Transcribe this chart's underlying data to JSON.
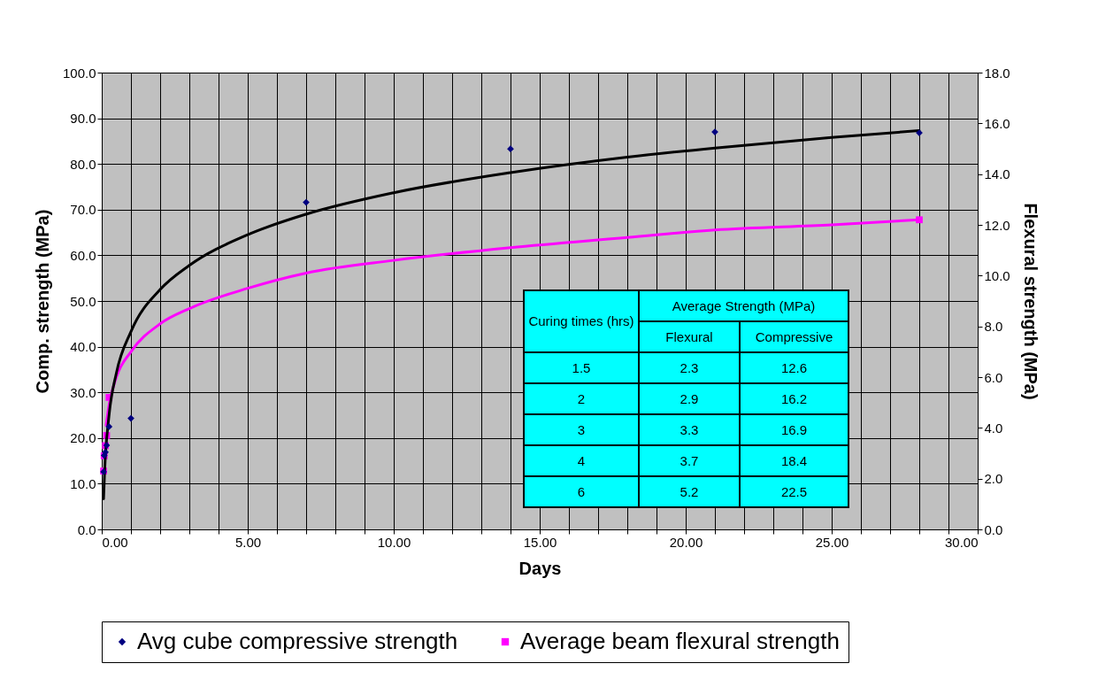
{
  "chart_data": {
    "type": "scatter",
    "xlabel": "Days",
    "ylabel": "Comp. strength (MPa)",
    "y2label": "Flexural strength (MPa)",
    "xlim": [
      0,
      30
    ],
    "xticks": [
      {
        "value": 0,
        "label": "0.00"
      },
      {
        "value": 1,
        "label": null
      },
      {
        "value": 2,
        "label": null
      },
      {
        "value": 3,
        "label": null
      },
      {
        "value": 4,
        "label": null
      },
      {
        "value": 5,
        "label": "5.00"
      },
      {
        "value": 6,
        "label": null
      },
      {
        "value": 7,
        "label": null
      },
      {
        "value": 8,
        "label": null
      },
      {
        "value": 9,
        "label": null
      },
      {
        "value": 10,
        "label": "10.00"
      },
      {
        "value": 11,
        "label": null
      },
      {
        "value": 12,
        "label": null
      },
      {
        "value": 13,
        "label": null
      },
      {
        "value": 14,
        "label": null
      },
      {
        "value": 15,
        "label": "15.00"
      },
      {
        "value": 16,
        "label": null
      },
      {
        "value": 17,
        "label": null
      },
      {
        "value": 18,
        "label": null
      },
      {
        "value": 19,
        "label": null
      },
      {
        "value": 20,
        "label": "20.00"
      },
      {
        "value": 21,
        "label": null
      },
      {
        "value": 22,
        "label": null
      },
      {
        "value": 23,
        "label": null
      },
      {
        "value": 24,
        "label": null
      },
      {
        "value": 25,
        "label": "25.00"
      },
      {
        "value": 26,
        "label": null
      },
      {
        "value": 27,
        "label": null
      },
      {
        "value": 28,
        "label": null
      },
      {
        "value": 29,
        "label": null
      },
      {
        "value": 30,
        "label": "30.00"
      }
    ],
    "ylim": [
      0,
      100
    ],
    "yticks": [
      {
        "value": 0,
        "label": "0.0"
      },
      {
        "value": 10,
        "label": "10.0"
      },
      {
        "value": 20,
        "label": "20.0"
      },
      {
        "value": 30,
        "label": "30.0"
      },
      {
        "value": 40,
        "label": "40.0"
      },
      {
        "value": 50,
        "label": "50.0"
      },
      {
        "value": 60,
        "label": "60.0"
      },
      {
        "value": 70,
        "label": "70.0"
      },
      {
        "value": 80,
        "label": "80.0"
      },
      {
        "value": 90,
        "label": "90.0"
      },
      {
        "value": 100,
        "label": "100.0"
      }
    ],
    "y2lim": [
      0,
      18
    ],
    "y2ticks": [
      {
        "value": 0,
        "label": "0.0"
      },
      {
        "value": 2,
        "label": "2.0"
      },
      {
        "value": 4,
        "label": "4.0"
      },
      {
        "value": 6,
        "label": "6.0"
      },
      {
        "value": 8,
        "label": "8.0"
      },
      {
        "value": 10,
        "label": "10.0"
      },
      {
        "value": 12,
        "label": "12.0"
      },
      {
        "value": 14,
        "label": "14.0"
      },
      {
        "value": 16,
        "label": "16.0"
      },
      {
        "value": 18,
        "label": "18.0"
      }
    ],
    "grid": true,
    "legend": "bottom",
    "series": [
      {
        "type": "line",
        "color": "#000000",
        "x": [
          0.0625,
          0.1,
          0.25,
          0.5,
          1,
          2,
          3,
          5,
          7,
          10,
          14,
          18,
          21,
          25,
          28
        ],
        "values": [
          6.7,
          12.9,
          25.0,
          34.2,
          43.3,
          52.5,
          57.8,
          64.5,
          69.0,
          73.7,
          78.1,
          81.5,
          83.5,
          85.8,
          87.3
        ]
      },
      {
        "type": "line",
        "color": "#ff00ff",
        "axis": "y2",
        "x": [
          0.15,
          0.25,
          0.5,
          1,
          2,
          3,
          5,
          7,
          10,
          14,
          18,
          21,
          25,
          28
        ],
        "values": [
          4.1,
          4.9,
          6.0,
          7.0,
          8.1,
          8.7,
          9.5,
          10.1,
          10.6,
          11.1,
          11.5,
          11.8,
          12.0,
          12.2
        ]
      },
      {
        "name": "Avg cube compressive strength",
        "color": "#000080",
        "marker": "diamond",
        "x": [
          0.063,
          0.083,
          0.125,
          0.167,
          0.25,
          1,
          7,
          14,
          21,
          28
        ],
        "values": [
          12.6,
          16.2,
          16.9,
          18.4,
          22.5,
          24.3,
          71.6,
          83.3,
          87.0,
          86.8
        ]
      },
      {
        "name": "Average beam flexural strength",
        "color": "#ff00ff",
        "marker": "square",
        "axis": "y2",
        "x": [
          0.063,
          0.083,
          0.125,
          0.167,
          0.25,
          28
        ],
        "values": [
          2.3,
          2.9,
          3.3,
          3.7,
          5.2,
          12.2
        ]
      }
    ],
    "annotations": [
      "Curing times (hrs)",
      "Average Strength (MPa)",
      "Flexural",
      "Compressive",
      "1.5",
      "2.3",
      "12.6",
      "2",
      "2.9",
      "16.2",
      "3",
      "3.3",
      "16.9",
      "4",
      "3.7",
      "18.4",
      "6",
      "5.2",
      "22.5"
    ]
  }
}
